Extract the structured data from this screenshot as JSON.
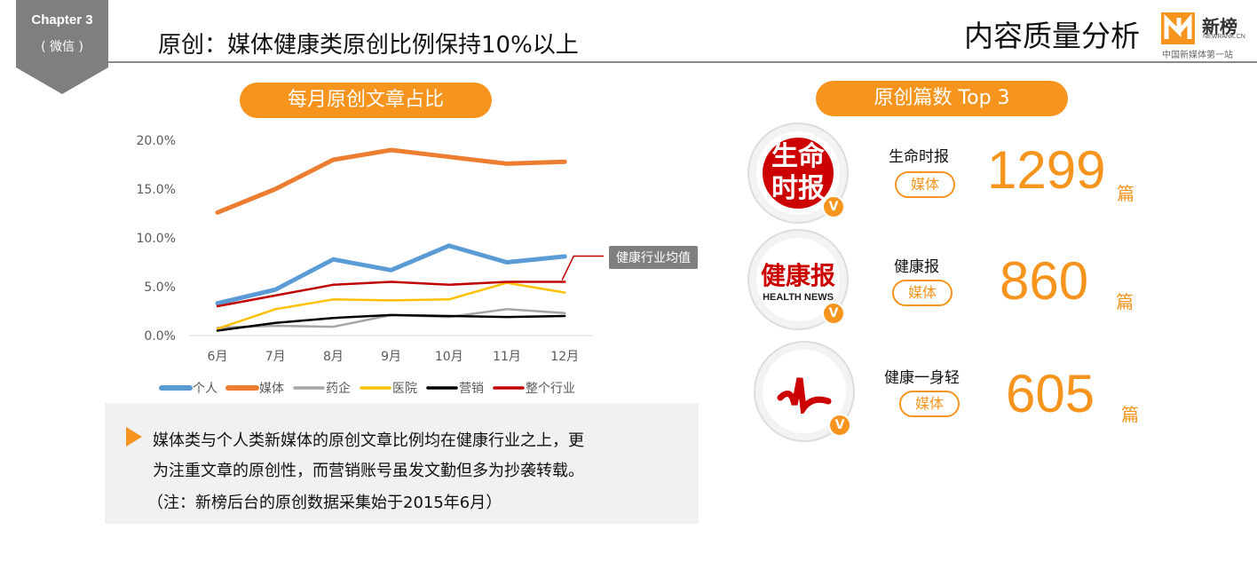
{
  "header": {
    "chapter": "Chapter 3",
    "channel": "( 微信 )",
    "title": "原创：媒体健康类原创比例保持10%以上",
    "section_title": "内容质量分析",
    "brand": "新榜",
    "brand_sub": "NEWRANK.CN",
    "brand_slogan": "中国新媒体第一站",
    "brand_color": "#f7941d"
  },
  "left": {
    "pill": "每月原创文章占比",
    "avg_label": "健康行业均值"
  },
  "right": {
    "pill": "原创篇数 Top 3",
    "unit": "篇",
    "accounts": [
      {
        "name": "生命时报",
        "tag": "媒体",
        "count": "1299",
        "logo_text": "生命时报",
        "badge": "V"
      },
      {
        "name": "健康报",
        "tag": "媒体",
        "count": "860",
        "logo_text": "健康报 HEALTH NEWS",
        "badge": "V"
      },
      {
        "name": "健康一身轻",
        "tag": "媒体",
        "count": "605",
        "logo_text": "",
        "badge": "V"
      }
    ]
  },
  "summary": {
    "lines": [
      "媒体类与个人类新媒体的原创文章比例均在健康行业之上，更",
      "为注重文章的原创性，而营销账号虽发文勤但多为抄袭转载。",
      "（注：新榜后台的原创数据采集始于2015年6月）"
    ]
  },
  "chart_data": {
    "type": "line",
    "title": "每月原创文章占比",
    "categories": [
      "6月",
      "7月",
      "8月",
      "9月",
      "10月",
      "11月",
      "12月"
    ],
    "yticks": [
      "0.0%",
      "5.0%",
      "10.0%",
      "15.0%",
      "20.0%"
    ],
    "ylim": [
      0,
      20
    ],
    "legend": "bottom",
    "series": [
      {
        "name": "个人",
        "color": "#5b9bd5",
        "width": 5,
        "values": [
          3.3,
          4.7,
          7.8,
          6.7,
          9.2,
          7.5,
          8.1
        ]
      },
      {
        "name": "媒体",
        "color": "#ed7d31",
        "width": 5,
        "values": [
          12.6,
          15.0,
          18.0,
          19.0,
          18.3,
          17.6,
          17.8
        ]
      },
      {
        "name": "药企",
        "color": "#a5a5a5",
        "width": 2.5,
        "values": [
          0.8,
          1.0,
          0.9,
          2.1,
          1.9,
          2.7,
          2.3
        ]
      },
      {
        "name": "医院",
        "color": "#ffc000",
        "width": 2.5,
        "values": [
          0.7,
          2.7,
          3.7,
          3.6,
          3.7,
          5.4,
          4.4
        ]
      },
      {
        "name": "营销",
        "color": "#000000",
        "width": 2.5,
        "values": [
          0.5,
          1.3,
          1.8,
          2.1,
          2.0,
          1.9,
          2.0
        ]
      },
      {
        "name": "整个行业",
        "color": "#c00000",
        "width": 2.5,
        "values": [
          3.0,
          4.1,
          5.2,
          5.5,
          5.2,
          5.5,
          5.5
        ]
      }
    ]
  }
}
